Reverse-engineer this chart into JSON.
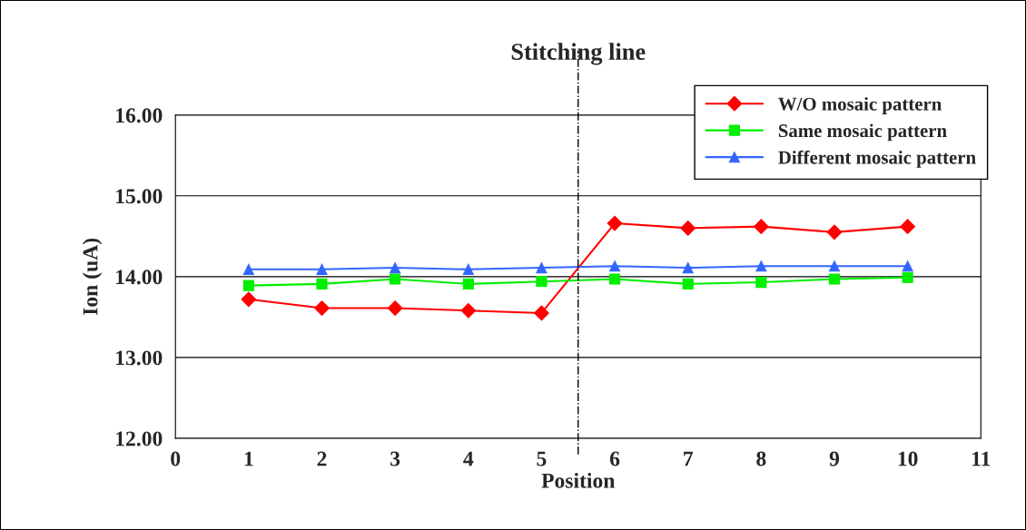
{
  "chart_data": {
    "type": "line",
    "xlabel": "Position",
    "ylabel": "Ion (uA)",
    "x": [
      1,
      2,
      3,
      4,
      5,
      6,
      7,
      8,
      9,
      10
    ],
    "xlim": [
      0,
      11
    ],
    "xticks": [
      0,
      1,
      2,
      3,
      4,
      5,
      6,
      7,
      8,
      9,
      10,
      11
    ],
    "ylim": [
      12,
      16
    ],
    "yticks": [
      {
        "value": 12,
        "label": "12.00"
      },
      {
        "value": 13,
        "label": "13.00"
      },
      {
        "value": 14,
        "label": "14.00"
      },
      {
        "value": 15,
        "label": "15.00"
      },
      {
        "value": 16,
        "label": "16.00"
      }
    ],
    "grid": "y",
    "legend": "top right",
    "line_style": "solid",
    "ref_lines": [
      {
        "axis": "x",
        "value": 5.5,
        "label": "Stitching line",
        "color": "#000000",
        "line_style": "dashdot"
      }
    ],
    "series": [
      {
        "name": "W/O mosaic pattern",
        "color": "#ff0000",
        "marker": "diamond",
        "values": [
          13.72,
          13.61,
          13.61,
          13.58,
          13.55,
          14.66,
          14.6,
          14.62,
          14.55,
          14.62
        ]
      },
      {
        "name": "Same mosaic pattern",
        "color": "#00ee00",
        "marker": "square",
        "values": [
          13.89,
          13.91,
          13.97,
          13.91,
          13.94,
          13.97,
          13.91,
          13.93,
          13.97,
          13.99
        ]
      },
      {
        "name": "Different mosaic pattern",
        "color": "#3366ff",
        "marker": "triangle",
        "values": [
          14.09,
          14.09,
          14.11,
          14.09,
          14.11,
          14.13,
          14.11,
          14.13,
          14.13,
          14.13
        ]
      }
    ]
  }
}
